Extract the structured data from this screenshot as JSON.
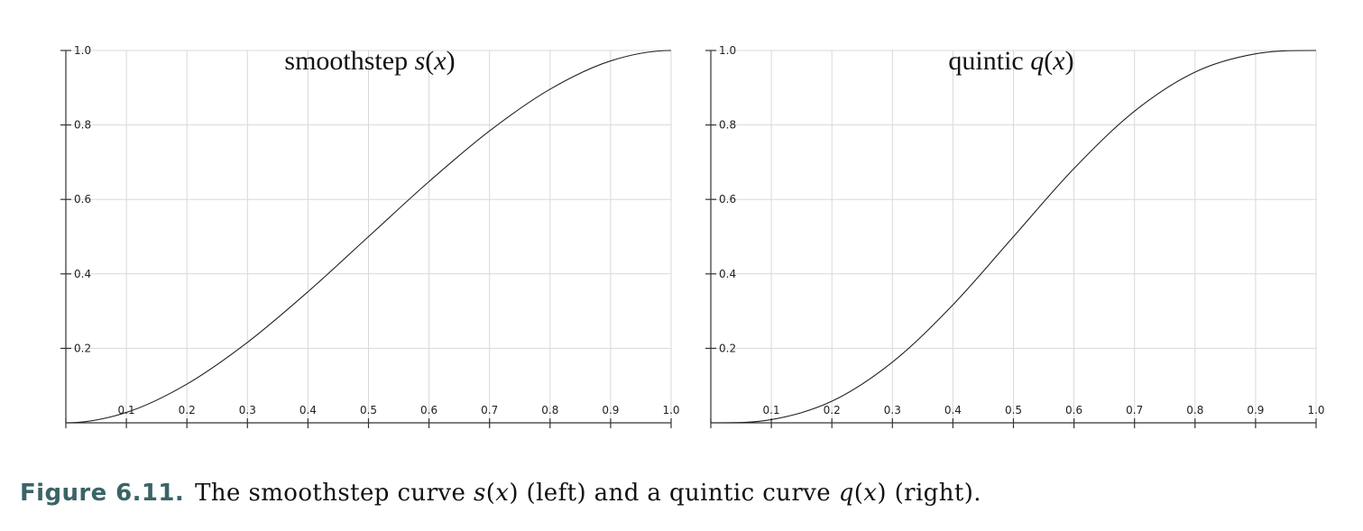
{
  "chart_data": [
    {
      "type": "line",
      "title_text": "smoothstep ",
      "title_func": "s",
      "title_arg": "(",
      "title_var": "x",
      "title_close": ")",
      "x_ticks": [
        "0.1",
        "0.2",
        "0.3",
        "0.4",
        "0.5",
        "0.6",
        "0.7",
        "0.8",
        "0.9",
        "1.0"
      ],
      "y_ticks": [
        "0.2",
        "0.4",
        "0.6",
        "0.8",
        "1.0"
      ],
      "xlim": [
        0,
        1
      ],
      "ylim": [
        0,
        1
      ],
      "grid": true,
      "series": [
        {
          "x": [
            0,
            0.1,
            0.2,
            0.3,
            0.4,
            0.5,
            0.6,
            0.7,
            0.8,
            0.9,
            1.0
          ],
          "y": [
            0,
            0.028,
            0.104,
            0.216,
            0.352,
            0.5,
            0.648,
            0.784,
            0.896,
            0.972,
            1.0
          ]
        }
      ]
    },
    {
      "type": "line",
      "title_text": "quintic ",
      "title_func": "q",
      "title_arg": "(",
      "title_var": "x",
      "title_close": ")",
      "x_ticks": [
        "0.1",
        "0.2",
        "0.3",
        "0.4",
        "0.5",
        "0.6",
        "0.7",
        "0.8",
        "0.9",
        "1.0"
      ],
      "y_ticks": [
        "0.2",
        "0.4",
        "0.6",
        "0.8",
        "1.0"
      ],
      "xlim": [
        0,
        1
      ],
      "ylim": [
        0,
        1
      ],
      "grid": true,
      "series": [
        {
          "x": [
            0,
            0.1,
            0.2,
            0.3,
            0.4,
            0.5,
            0.6,
            0.7,
            0.8,
            0.9,
            1.0
          ],
          "y": [
            0,
            0.0086,
            0.058,
            0.163,
            0.317,
            0.5,
            0.683,
            0.837,
            0.942,
            0.991,
            1.0
          ]
        }
      ]
    }
  ],
  "caption": {
    "label": "Figure 6.11.",
    "p1": "The smoothstep curve ",
    "f1": "s",
    "a1": "(",
    "v1": "x",
    "c1": ")",
    "p2": " (left) and a quintic curve ",
    "f2": "q",
    "a2": "(",
    "v2": "x",
    "c2": ")",
    "p3": " (right)."
  }
}
